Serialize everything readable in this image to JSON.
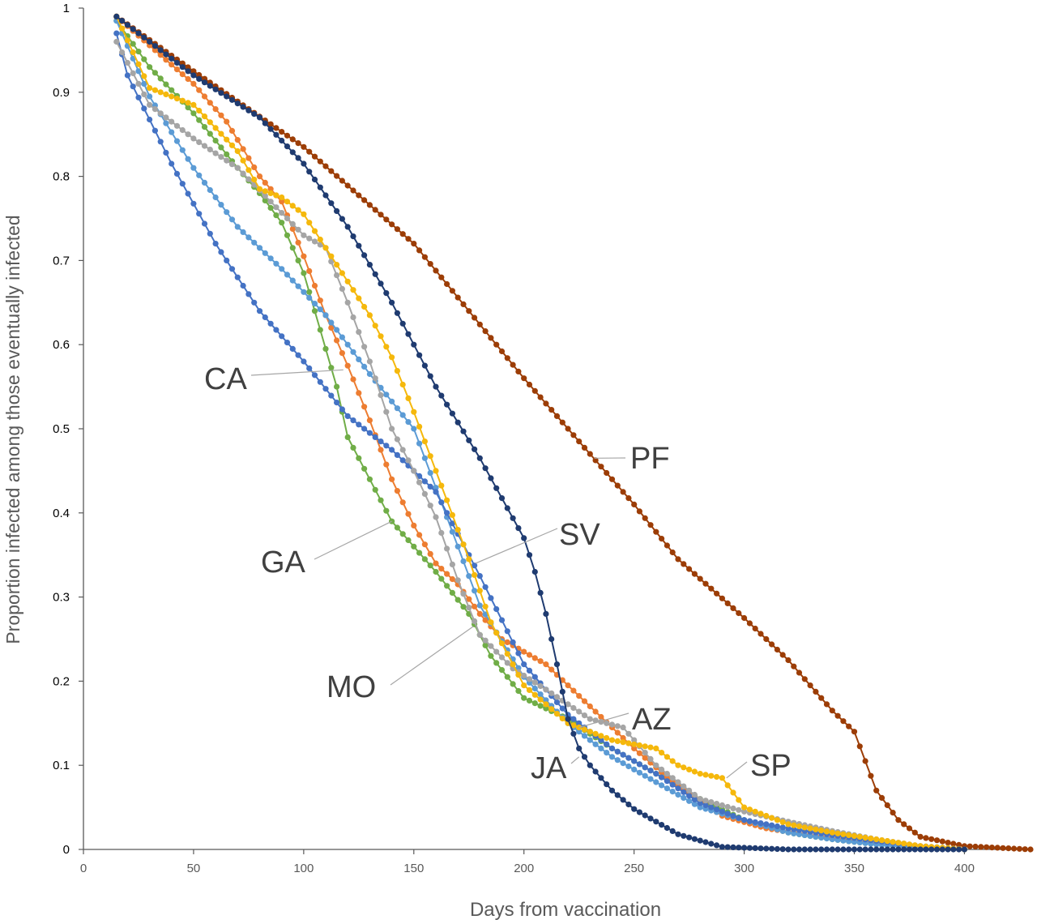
{
  "chart_data": {
    "type": "line",
    "title": "",
    "xlabel": "Days from vaccination",
    "ylabel": "Proportion infected among those eventually infected",
    "xlim": [
      0,
      430
    ],
    "ylim": [
      0,
      1
    ],
    "xticks": [
      "0",
      "50",
      "100",
      "150",
      "200",
      "250",
      "300",
      "350",
      "400"
    ],
    "yticks": [
      "0",
      "0.1",
      "0.2",
      "0.3",
      "0.4",
      "0.5",
      "0.6",
      "0.7",
      "0.8",
      "0.9",
      "1"
    ],
    "grid": false,
    "legend": "none",
    "series": [
      {
        "name": "PF",
        "color": "#9c3d06",
        "points": [
          [
            15,
            0.99
          ],
          [
            50,
            0.925
          ],
          [
            100,
            0.835
          ],
          [
            150,
            0.72
          ],
          [
            200,
            0.56
          ],
          [
            230,
            0.47
          ],
          [
            250,
            0.41
          ],
          [
            270,
            0.345
          ],
          [
            300,
            0.275
          ],
          [
            320,
            0.225
          ],
          [
            340,
            0.165
          ],
          [
            350,
            0.14
          ],
          [
            360,
            0.07
          ],
          [
            370,
            0.035
          ],
          [
            380,
            0.015
          ],
          [
            400,
            0.004
          ],
          [
            430,
            0.0
          ]
        ]
      },
      {
        "name": "JA",
        "color": "#1f3b70",
        "points": [
          [
            15,
            0.99
          ],
          [
            50,
            0.92
          ],
          [
            80,
            0.87
          ],
          [
            100,
            0.815
          ],
          [
            120,
            0.74
          ],
          [
            140,
            0.65
          ],
          [
            160,
            0.55
          ],
          [
            180,
            0.465
          ],
          [
            200,
            0.37
          ],
          [
            205,
            0.33
          ],
          [
            210,
            0.28
          ],
          [
            215,
            0.22
          ],
          [
            220,
            0.155
          ],
          [
            225,
            0.12
          ],
          [
            230,
            0.1
          ],
          [
            240,
            0.07
          ],
          [
            250,
            0.048
          ],
          [
            270,
            0.018
          ],
          [
            290,
            0.003
          ],
          [
            320,
            0.0
          ],
          [
            400,
            0.0
          ]
        ]
      },
      {
        "name": "SP",
        "color": "#f5b80c",
        "points": [
          [
            15,
            0.99
          ],
          [
            30,
            0.905
          ],
          [
            50,
            0.885
          ],
          [
            70,
            0.83
          ],
          [
            80,
            0.785
          ],
          [
            90,
            0.775
          ],
          [
            100,
            0.755
          ],
          [
            120,
            0.675
          ],
          [
            130,
            0.635
          ],
          [
            140,
            0.585
          ],
          [
            150,
            0.52
          ],
          [
            160,
            0.45
          ],
          [
            175,
            0.345
          ],
          [
            185,
            0.27
          ],
          [
            200,
            0.195
          ],
          [
            220,
            0.15
          ],
          [
            240,
            0.13
          ],
          [
            260,
            0.12
          ],
          [
            270,
            0.1
          ],
          [
            280,
            0.09
          ],
          [
            290,
            0.085
          ],
          [
            300,
            0.05
          ],
          [
            320,
            0.03
          ],
          [
            340,
            0.02
          ],
          [
            360,
            0.012
          ],
          [
            380,
            0.004
          ],
          [
            400,
            0.0
          ]
        ]
      },
      {
        "name": "SV",
        "color": "#a5a5a5",
        "points": [
          [
            15,
            0.96
          ],
          [
            30,
            0.885
          ],
          [
            50,
            0.845
          ],
          [
            70,
            0.81
          ],
          [
            85,
            0.77
          ],
          [
            100,
            0.73
          ],
          [
            110,
            0.715
          ],
          [
            120,
            0.65
          ],
          [
            130,
            0.58
          ],
          [
            140,
            0.5
          ],
          [
            150,
            0.45
          ],
          [
            160,
            0.395
          ],
          [
            170,
            0.32
          ],
          [
            180,
            0.255
          ],
          [
            195,
            0.215
          ],
          [
            210,
            0.19
          ],
          [
            230,
            0.155
          ],
          [
            245,
            0.145
          ],
          [
            260,
            0.1
          ],
          [
            280,
            0.06
          ],
          [
            300,
            0.045
          ],
          [
            320,
            0.033
          ],
          [
            340,
            0.022
          ],
          [
            360,
            0.012
          ],
          [
            380,
            0.004
          ],
          [
            400,
            0.0
          ]
        ]
      },
      {
        "name": "MO",
        "color": "#ed7d31",
        "points": [
          [
            15,
            0.99
          ],
          [
            50,
            0.91
          ],
          [
            65,
            0.865
          ],
          [
            80,
            0.8
          ],
          [
            90,
            0.77
          ],
          [
            100,
            0.705
          ],
          [
            110,
            0.635
          ],
          [
            120,
            0.575
          ],
          [
            130,
            0.51
          ],
          [
            140,
            0.44
          ],
          [
            150,
            0.385
          ],
          [
            160,
            0.34
          ],
          [
            170,
            0.315
          ],
          [
            180,
            0.28
          ],
          [
            190,
            0.25
          ],
          [
            210,
            0.22
          ],
          [
            230,
            0.17
          ],
          [
            250,
            0.12
          ],
          [
            270,
            0.075
          ],
          [
            290,
            0.04
          ],
          [
            310,
            0.025
          ],
          [
            330,
            0.017
          ],
          [
            350,
            0.01
          ],
          [
            370,
            0.004
          ],
          [
            400,
            0.0
          ]
        ]
      },
      {
        "name": "CA",
        "color": "#4472c4",
        "points": [
          [
            15,
            0.97
          ],
          [
            20,
            0.92
          ],
          [
            40,
            0.815
          ],
          [
            60,
            0.72
          ],
          [
            80,
            0.64
          ],
          [
            100,
            0.58
          ],
          [
            120,
            0.515
          ],
          [
            140,
            0.475
          ],
          [
            160,
            0.425
          ],
          [
            180,
            0.325
          ],
          [
            200,
            0.22
          ],
          [
            220,
            0.16
          ],
          [
            240,
            0.12
          ],
          [
            260,
            0.09
          ],
          [
            280,
            0.055
          ],
          [
            300,
            0.035
          ],
          [
            320,
            0.025
          ],
          [
            340,
            0.017
          ],
          [
            360,
            0.01
          ],
          [
            380,
            0.004
          ],
          [
            400,
            0.0
          ]
        ]
      },
      {
        "name": "AZ",
        "color": "#5b9bd5",
        "points": [
          [
            15,
            0.985
          ],
          [
            30,
            0.895
          ],
          [
            50,
            0.81
          ],
          [
            70,
            0.74
          ],
          [
            90,
            0.69
          ],
          [
            110,
            0.635
          ],
          [
            130,
            0.565
          ],
          [
            150,
            0.5
          ],
          [
            170,
            0.36
          ],
          [
            180,
            0.29
          ],
          [
            200,
            0.205
          ],
          [
            220,
            0.15
          ],
          [
            240,
            0.11
          ],
          [
            260,
            0.08
          ],
          [
            280,
            0.05
          ],
          [
            300,
            0.035
          ],
          [
            320,
            0.02
          ],
          [
            340,
            0.012
          ],
          [
            360,
            0.006
          ],
          [
            380,
            0.002
          ],
          [
            400,
            0.0
          ]
        ]
      },
      {
        "name": "GA",
        "color": "#70ad47",
        "points": [
          [
            15,
            0.985
          ],
          [
            30,
            0.93
          ],
          [
            50,
            0.875
          ],
          [
            70,
            0.81
          ],
          [
            80,
            0.78
          ],
          [
            90,
            0.745
          ],
          [
            100,
            0.685
          ],
          [
            105,
            0.64
          ],
          [
            110,
            0.595
          ],
          [
            115,
            0.55
          ],
          [
            120,
            0.49
          ],
          [
            130,
            0.44
          ],
          [
            140,
            0.39
          ],
          [
            160,
            0.33
          ],
          [
            175,
            0.28
          ],
          [
            185,
            0.23
          ],
          [
            200,
            0.18
          ],
          [
            220,
            0.155
          ],
          [
            240,
            0.12
          ],
          [
            260,
            0.09
          ],
          [
            280,
            0.06
          ],
          [
            300,
            0.035
          ],
          [
            320,
            0.02
          ],
          [
            340,
            0.012
          ],
          [
            360,
            0.006
          ],
          [
            380,
            0.002
          ],
          [
            400,
            0.0
          ]
        ]
      }
    ],
    "annotations": [
      {
        "text": "PF",
        "series": "PF",
        "at": [
          232,
          0.465
        ]
      },
      {
        "text": "CA",
        "series": "CA",
        "at": [
          118,
          0.57
        ]
      },
      {
        "text": "SV",
        "series": "SV",
        "at": [
          178,
          0.34
        ]
      },
      {
        "text": "GA",
        "series": "GA",
        "at": [
          140,
          0.39
        ]
      },
      {
        "text": "MO",
        "series": "MO",
        "at": [
          177,
          0.265
        ]
      },
      {
        "text": "AZ",
        "series": "AZ",
        "at": [
          225,
          0.145
        ]
      },
      {
        "text": "JA",
        "series": "JA",
        "at": [
          225,
          0.11
        ]
      },
      {
        "text": "SP",
        "series": "SP",
        "at": [
          292,
          0.085
        ]
      }
    ]
  }
}
